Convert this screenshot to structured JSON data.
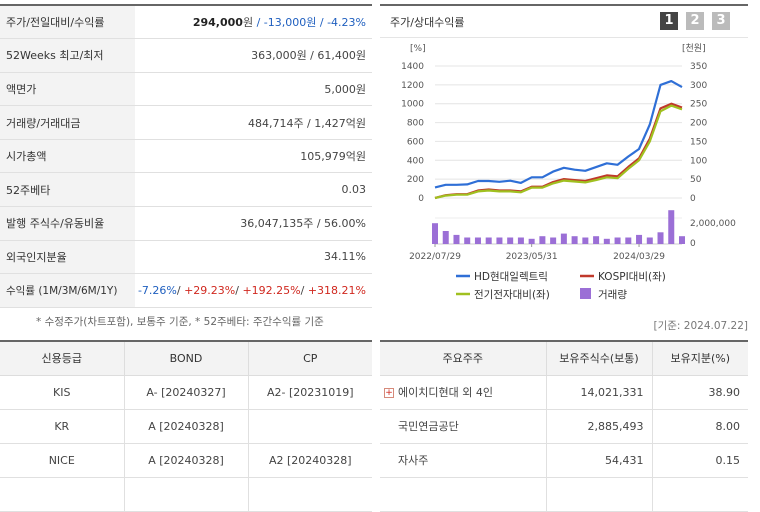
{
  "summary": {
    "price": {
      "label": "주가/전일대비/수익률",
      "value": "294,000",
      "unit": "원",
      "change": "-13,000원",
      "rate": "-4.23%"
    },
    "w52": {
      "label": "52Weeks 최고/최저",
      "value": "363,000원 / 61,400원"
    },
    "par": {
      "label": "액면가",
      "value": "5,000원"
    },
    "volume": {
      "label": "거래량/거래대금",
      "value": "484,714주 / 1,427억원"
    },
    "mcap": {
      "label": "시가총액",
      "value": "105,979억원"
    },
    "beta": {
      "label": "52주베타",
      "value": "0.03"
    },
    "shares": {
      "label": "발행 주식수/유동비율",
      "value": "36,047,135주 / 56.00%"
    },
    "foreign": {
      "label": "외국인지분율",
      "value": "34.11%"
    },
    "returns": {
      "label": "수익률 (1M/3M/6M/1Y)",
      "r1": "-7.26%",
      "r2": "+29.23%",
      "r3": "+192.25%",
      "r4": "+318.21%",
      "sep": "/ "
    }
  },
  "note": "* 수정주가(차트포함), 보통주 기준, * 52주베타: 주간수익률 기준",
  "chart": {
    "title": "주가/상대수익률",
    "pages": [
      "1",
      "2",
      "3"
    ],
    "base_date": "[기준: 2024.07.22]",
    "left_unit": "[%]",
    "right_unit": "[천원]",
    "left_ticks": [
      "1400",
      "1200",
      "1000",
      "800",
      "600",
      "400",
      "200",
      "0"
    ],
    "right_ticks": [
      "350",
      "300",
      "250",
      "200",
      "150",
      "100",
      "50",
      "0"
    ],
    "vol_tick": "2,000,000",
    "vol_zero": "0",
    "x_ticks": [
      "2022/07/29",
      "2023/05/31",
      "2024/03/29"
    ],
    "legend": {
      "s1": "HD현대일렉트릭",
      "s2": "KOSPI대비(좌)",
      "s3": "전기전자대비(좌)",
      "s4": "거래량"
    },
    "colors": {
      "price": "#2f6fd6",
      "kospi": "#c0392b",
      "sector": "#a0c020",
      "volume": "#9b6fd6"
    }
  },
  "chart_data": {
    "type": "line",
    "x": [
      "2022/07/29",
      "2022/09",
      "2022/10",
      "2022/11",
      "2022/12",
      "2023/01",
      "2023/02",
      "2023/03",
      "2023/04",
      "2023/05/31",
      "2023/06",
      "2023/07",
      "2023/08",
      "2023/09",
      "2023/10",
      "2023/11",
      "2023/12",
      "2024/01",
      "2024/02",
      "2024/03/29",
      "2024/04",
      "2024/05",
      "2024/06",
      "2024/07/22"
    ],
    "series": [
      {
        "name": "HD현대일렉트릭",
        "axis": "right",
        "values": [
          28,
          35,
          35,
          36,
          45,
          45,
          43,
          46,
          40,
          55,
          55,
          70,
          80,
          75,
          72,
          82,
          92,
          88,
          110,
          130,
          195,
          300,
          310,
          294
        ]
      },
      {
        "name": "KOSPI대비(좌)",
        "axis": "left",
        "values": [
          0,
          30,
          40,
          40,
          80,
          90,
          80,
          80,
          70,
          120,
          120,
          170,
          200,
          190,
          180,
          210,
          240,
          230,
          330,
          420,
          630,
          950,
          1000,
          960
        ]
      },
      {
        "name": "전기전자대비(좌)",
        "axis": "left",
        "values": [
          0,
          25,
          35,
          35,
          70,
          80,
          70,
          70,
          60,
          110,
          110,
          155,
          185,
          175,
          165,
          190,
          220,
          210,
          310,
          400,
          600,
          920,
          980,
          940
        ]
      }
    ],
    "volume": {
      "name": "거래량",
      "values": [
        1600000,
        1000000,
        700000,
        500000,
        500000,
        500000,
        500000,
        500000,
        500000,
        400000,
        600000,
        500000,
        800000,
        600000,
        500000,
        600000,
        400000,
        500000,
        500000,
        700000,
        500000,
        900000,
        2600000,
        600000
      ]
    },
    "left_ylim": [
      0,
      1400
    ],
    "right_ylim": [
      0,
      350
    ],
    "volume_ylim": [
      0,
      2000000
    ]
  },
  "credit": {
    "headers": [
      "신용등급",
      "BOND",
      "CP"
    ],
    "rows": [
      {
        "agency": "KIS",
        "bond": "A-  [20240327]",
        "cp": "A2-  [20231019]"
      },
      {
        "agency": "KR",
        "bond": "A  [20240328]",
        "cp": ""
      },
      {
        "agency": "NICE",
        "bond": "A  [20240328]",
        "cp": "A2  [20240328]"
      }
    ]
  },
  "holders": {
    "headers": [
      "주요주주",
      "보유주식수(보통)",
      "보유지분(%)"
    ],
    "rows": [
      {
        "name": "에이치디현대 외 4인",
        "shares": "14,021,331",
        "pct": "38.90"
      },
      {
        "name": "국민연금공단",
        "shares": "2,885,493",
        "pct": "8.00"
      },
      {
        "name": "자사주",
        "shares": "54,431",
        "pct": "0.15"
      }
    ]
  }
}
